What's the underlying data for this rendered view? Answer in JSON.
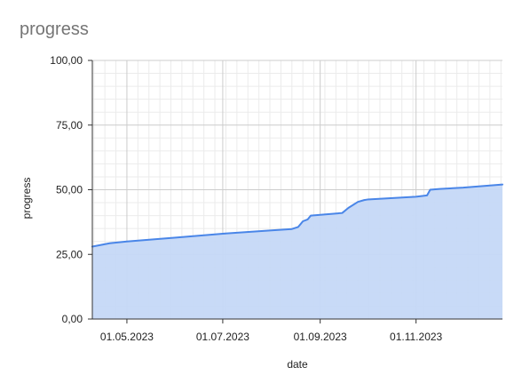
{
  "chart_data": {
    "type": "area",
    "title": "progress",
    "xlabel": "date",
    "ylabel": "progress",
    "ylim": [
      0,
      100
    ],
    "xlim": [
      "2023-04-09",
      "2023-12-26"
    ],
    "y_ticks": [
      "0,00",
      "25,00",
      "50,00",
      "75,00",
      "100,00"
    ],
    "y_tick_values": [
      0,
      25,
      50,
      75,
      100
    ],
    "x_ticks": [
      "01.05.2023",
      "01.07.2023",
      "01.09.2023",
      "01.11.2023"
    ],
    "x_tick_dates": [
      "2023-05-01",
      "2023-07-01",
      "2023-09-01",
      "2023-11-01"
    ],
    "grid": true,
    "legend": "none",
    "colors": {
      "line": "#4a86e8",
      "fill": "#c5d8f7",
      "major_grid": "#cccccc",
      "minor_grid": "#ebebeb",
      "axis": "#333333"
    },
    "series": [
      {
        "x": [
          "2023-04-09",
          "2023-04-20",
          "2023-05-01",
          "2023-06-01",
          "2023-07-01",
          "2023-08-01",
          "2023-08-14",
          "2023-08-18",
          "2023-08-21",
          "2023-08-24",
          "2023-08-26",
          "2023-09-01",
          "2023-09-15",
          "2023-09-19",
          "2023-09-25",
          "2023-09-29",
          "2023-10-01",
          "2023-11-01",
          "2023-11-08",
          "2023-11-10",
          "2023-11-16",
          "2023-12-01",
          "2023-12-26"
        ],
        "y": [
          28.0,
          29.3,
          30.0,
          31.5,
          33.0,
          34.3,
          34.8,
          35.6,
          37.8,
          38.5,
          40.0,
          40.3,
          41.0,
          43.0,
          45.3,
          46.0,
          46.2,
          47.3,
          47.8,
          50.0,
          50.3,
          50.8,
          52.0
        ]
      }
    ]
  }
}
